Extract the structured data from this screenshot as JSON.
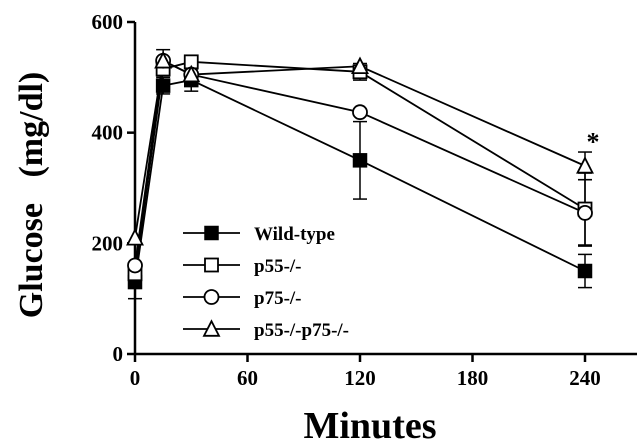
{
  "chart_data": {
    "type": "line",
    "xlabel": "Minutes",
    "ylabel": "Glucose   (mg/dl)",
    "xlim": [
      0,
      270
    ],
    "ylim": [
      0,
      600
    ],
    "x_ticks": [
      0,
      60,
      120,
      180,
      240
    ],
    "y_ticks": [
      0,
      200,
      400,
      600
    ],
    "legend_position": "bottom-left",
    "annotation": {
      "text": "*",
      "x": 240,
      "y": 400
    },
    "series": [
      {
        "name": "Wild-type",
        "marker": "filled-square",
        "x": [
          0,
          15,
          30,
          120,
          240
        ],
        "y": [
          130,
          485,
          495,
          350,
          150
        ],
        "err": [
          30,
          15,
          20,
          70,
          30
        ]
      },
      {
        "name": "p55-/-",
        "marker": "open-square",
        "x": [
          0,
          15,
          30,
          120,
          240
        ],
        "y": [
          145,
          515,
          528,
          510,
          262
        ],
        "err": [
          0,
          10,
          0,
          15,
          65
        ]
      },
      {
        "name": "p75-/-",
        "marker": "open-circle",
        "x": [
          0,
          15,
          30,
          120,
          240
        ],
        "y": [
          160,
          530,
          505,
          437,
          255
        ],
        "err": [
          0,
          20,
          0,
          0,
          60
        ]
      },
      {
        "name": "p55-/-p75-/-",
        "marker": "open-triangle",
        "x": [
          0,
          15,
          30,
          120,
          240
        ],
        "y": [
          210,
          530,
          505,
          520,
          340
        ],
        "err": [
          0,
          0,
          0,
          0,
          25
        ]
      }
    ]
  }
}
